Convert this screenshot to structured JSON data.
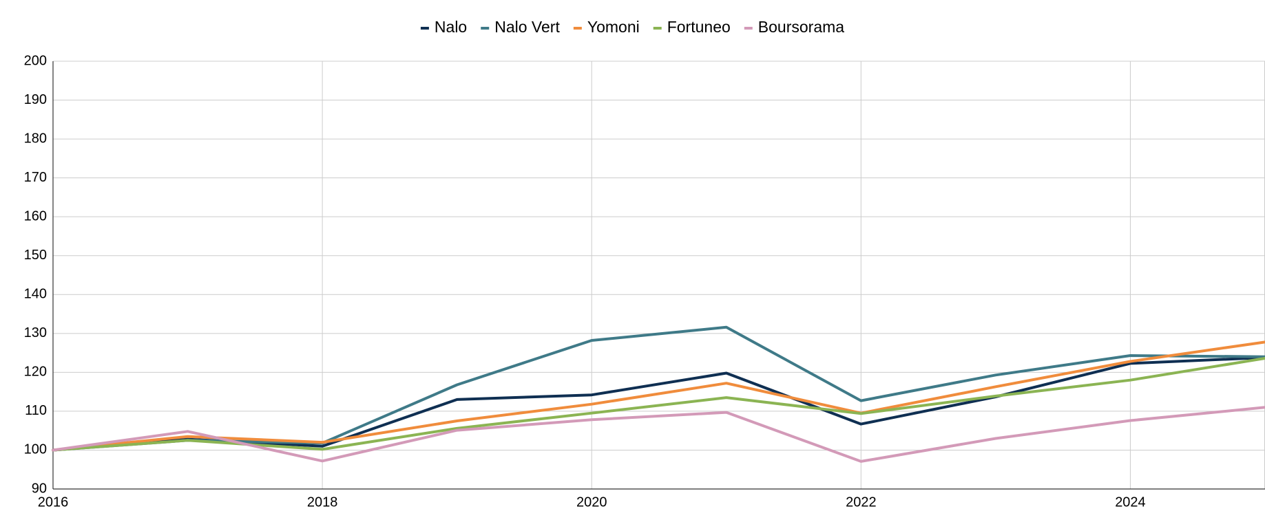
{
  "chart_data": {
    "type": "line",
    "title": "",
    "xlabel": "",
    "ylabel": "",
    "x": [
      2016,
      2017,
      2018,
      2019,
      2020,
      2021,
      2022,
      2023,
      2024,
      2025
    ],
    "xlim": [
      2016,
      2025
    ],
    "ylim": [
      90,
      200
    ],
    "x_ticks": [
      "2016",
      "2018",
      "2020",
      "2022",
      "2024"
    ],
    "y_ticks": [
      "90",
      "100",
      "110",
      "120",
      "130",
      "140",
      "150",
      "160",
      "170",
      "180",
      "190",
      "200"
    ],
    "grid": true,
    "legend_position": "top",
    "series": [
      {
        "name": "Nalo",
        "color": "#0f2f52",
        "values": [
          100,
          102.8,
          101,
          113,
          114.2,
          119.8,
          106.7,
          113.7,
          122.3,
          123.8
        ]
      },
      {
        "name": "Nalo Vert",
        "color": "#3f7a88",
        "values": [
          100,
          102.5,
          101.8,
          116.8,
          128.2,
          131.6,
          112.7,
          119.3,
          124.3,
          124
        ]
      },
      {
        "name": "Yomoni",
        "color": "#f08c3c",
        "values": [
          100,
          103.5,
          102,
          107.5,
          111.8,
          117.2,
          109.5,
          116.3,
          122.8,
          127.8
        ]
      },
      {
        "name": "Fortuneo",
        "color": "#8bb453",
        "values": [
          100,
          102.5,
          100.2,
          105.6,
          109.5,
          113.5,
          109.4,
          113.9,
          118,
          123.6
        ]
      },
      {
        "name": "Boursorama",
        "color": "#d39ab8",
        "values": [
          100,
          104.8,
          97.2,
          105.1,
          107.8,
          109.7,
          97.1,
          103,
          107.6,
          111
        ]
      }
    ]
  }
}
